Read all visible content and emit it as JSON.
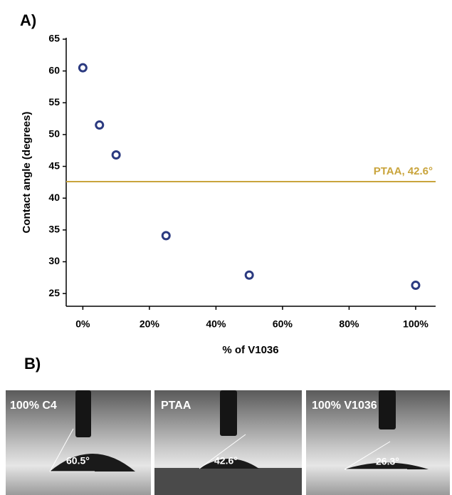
{
  "panel_labels": [
    "A)",
    "B)"
  ],
  "chart_data": {
    "type": "scatter",
    "xlabel": "% of V1036",
    "ylabel": "Contact angle (degrees)",
    "x": [
      0,
      5,
      10,
      25,
      50,
      100
    ],
    "series": [
      {
        "color": "#2b3a80",
        "values": [
          60.5,
          51.5,
          46.8,
          34.1,
          27.9,
          26.3
        ]
      }
    ],
    "reference_line": {
      "label": "PTAA, 42.6°",
      "value": 42.6,
      "color": "#c9a43c"
    },
    "xlim": [
      -5,
      106
    ],
    "ylim": [
      23,
      65
    ],
    "xticks": [
      {
        "value": 0,
        "label": "0%"
      },
      {
        "value": 20,
        "label": "20%"
      },
      {
        "value": 40,
        "label": "40%"
      },
      {
        "value": 60,
        "label": "60%"
      },
      {
        "value": 80,
        "label": "80%"
      },
      {
        "value": 100,
        "label": "100%"
      }
    ],
    "yticks": [
      25,
      30,
      35,
      40,
      45,
      50,
      55,
      60,
      65
    ]
  },
  "photos": [
    {
      "caption": "100% C4",
      "angle": "60.5°"
    },
    {
      "caption": "PTAA",
      "angle": "42.6°"
    },
    {
      "caption": "100% V1036",
      "angle": "26.3°"
    }
  ]
}
